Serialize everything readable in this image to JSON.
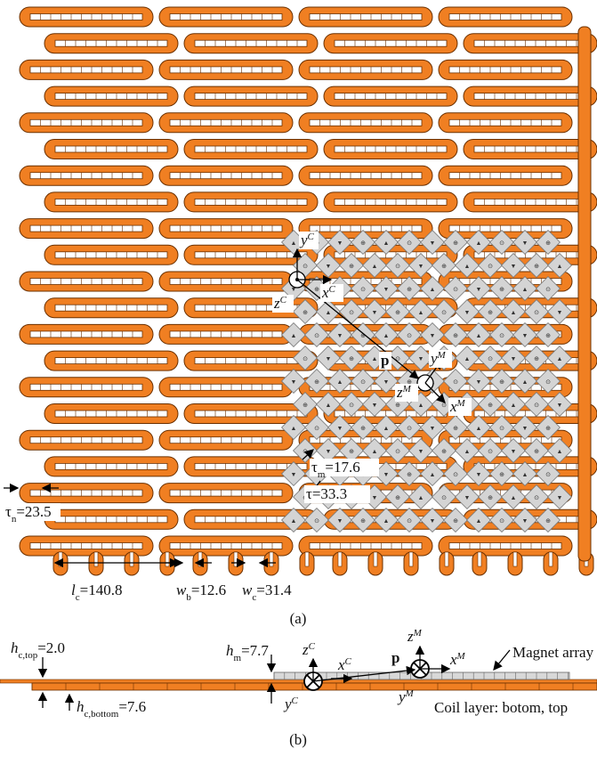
{
  "panel_a": {
    "label": "(a)",
    "dimensions": {
      "tau_n": {
        "symbol": "τ",
        "sub": "n",
        "value": "=23.5"
      },
      "l_c": {
        "symbol": "l",
        "sub": "c",
        "value": "=140.8"
      },
      "w_b": {
        "symbol": "w",
        "sub": "b",
        "value": "=12.6"
      },
      "w_c": {
        "symbol": "w",
        "sub": "c",
        "value": "=31.4"
      },
      "tau_m": {
        "symbol": "τ",
        "sub": "m",
        "value": "=17.6"
      },
      "tau": {
        "symbol": "τ",
        "value": "=33.3"
      }
    },
    "axes": {
      "y_C": {
        "symbol": "y",
        "sup": "C"
      },
      "x_C": {
        "symbol": "x",
        "sup": "C"
      },
      "z_C": {
        "symbol": "z",
        "sup": "C"
      },
      "p": {
        "symbol": "p"
      },
      "y_M": {
        "symbol": "y",
        "sup": "M"
      },
      "x_M": {
        "symbol": "x",
        "sup": "M"
      },
      "z_M": {
        "symbol": "z",
        "sup": "M"
      }
    }
  },
  "panel_b": {
    "label": "(b)",
    "dimensions": {
      "h_c_top": {
        "symbol": "h",
        "sub": "c,top",
        "value": "=2.0"
      },
      "h_c_bottom": {
        "symbol": "h",
        "sub": "c,bottom",
        "value": "=7.6"
      },
      "h_m": {
        "symbol": "h",
        "sub": "m",
        "value": "=7.7"
      }
    },
    "axes": {
      "z_C": {
        "symbol": "z",
        "sup": "C"
      },
      "x_C": {
        "symbol": "x",
        "sup": "C"
      },
      "y_C": {
        "symbol": "y",
        "sup": "C"
      },
      "p": {
        "symbol": "p"
      },
      "z_M": {
        "symbol": "z",
        "sup": "M"
      },
      "x_M": {
        "symbol": "x",
        "sup": "M"
      },
      "y_M": {
        "symbol": "y",
        "sup": "M"
      }
    },
    "annotations": {
      "magnet_array": "Magnet array",
      "coil_layer": "Coil layer: botom, top"
    }
  }
}
